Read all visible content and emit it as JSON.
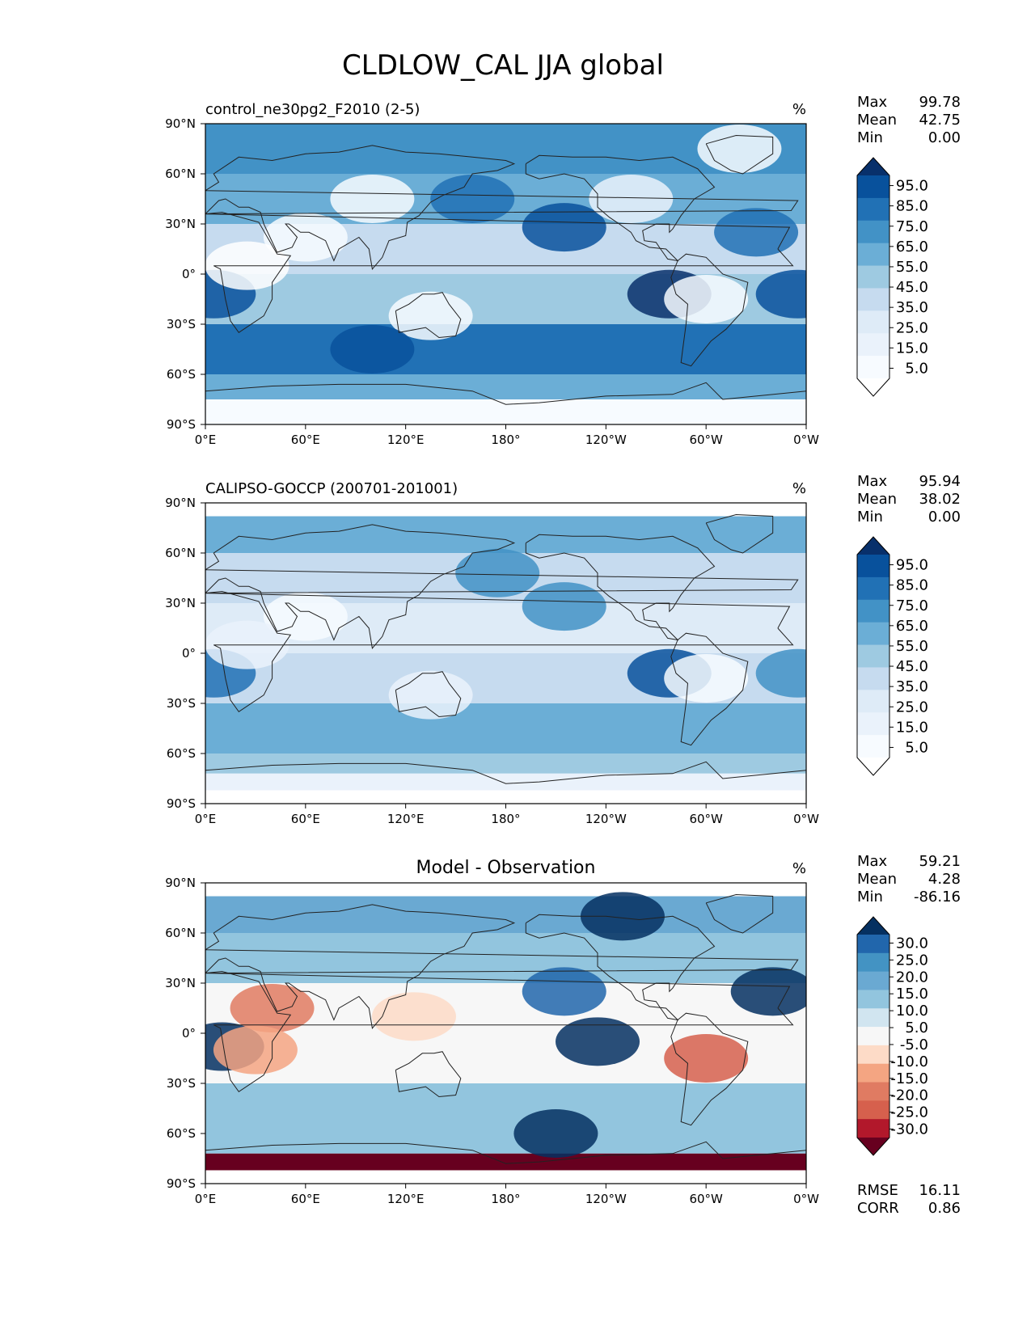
{
  "figure": {
    "title": "CLDLOW_CAL JJA global"
  },
  "chart_data": [
    {
      "type": "heatmap",
      "title": "control_ne30pg2_F2010 (2-5)",
      "units": "%",
      "stats": [
        {
          "label": "Max",
          "value": "99.78"
        },
        {
          "label": "Mean",
          "value": "42.75"
        },
        {
          "label": "Min",
          "value": "0.00"
        }
      ],
      "colorbar_ticks": [
        "95.0",
        "85.0",
        "75.0",
        "65.0",
        "55.0",
        "45.0",
        "35.0",
        "25.0",
        "15.0",
        "5.0"
      ],
      "colorbar_colors": [
        "#08306b",
        "#08519c",
        "#2171b5",
        "#4292c6",
        "#6baed6",
        "#9ecae1",
        "#c6dbef",
        "#deebf7",
        "#eaf2fb",
        "#f7fbff",
        "#ffffff"
      ],
      "x_ticks": [
        "0°E",
        "60°E",
        "120°E",
        "180°",
        "120°W",
        "60°W",
        "0°W"
      ],
      "y_ticks": [
        "90°N",
        "60°N",
        "30°N",
        "0°",
        "30°S",
        "60°S",
        "90°S"
      ],
      "xlim": [
        0,
        360
      ],
      "ylim": [
        -90,
        90
      ],
      "zones": [
        {
          "lat": [
            60,
            90
          ],
          "v": 72
        },
        {
          "lat": [
            30,
            60
          ],
          "v": 58
        },
        {
          "lat": [
            0,
            30
          ],
          "v": 35
        },
        {
          "lat": [
            -30,
            0
          ],
          "v": 48
        },
        {
          "lat": [
            -60,
            -30
          ],
          "v": 78
        },
        {
          "lat": [
            -75,
            -60
          ],
          "v": 62
        },
        {
          "lat": [
            -90,
            -75
          ],
          "v": 6
        }
      ],
      "blobs": [
        {
          "lon": 215,
          "lat": 28,
          "v": 92
        },
        {
          "lon": 278,
          "lat": -12,
          "v": 95
        },
        {
          "lon": 355,
          "lat": -12,
          "v": 90
        },
        {
          "lon": 5,
          "lat": -12,
          "v": 88
        },
        {
          "lon": 330,
          "lat": 25,
          "v": 80
        },
        {
          "lon": 60,
          "lat": 22,
          "v": 5
        },
        {
          "lon": 25,
          "lat": 5,
          "v": 4
        },
        {
          "lon": 100,
          "lat": 45,
          "v": 6
        },
        {
          "lon": 300,
          "lat": -15,
          "v": 8
        },
        {
          "lon": 135,
          "lat": -25,
          "v": 10
        },
        {
          "lon": 255,
          "lat": 45,
          "v": 15
        },
        {
          "lon": 320,
          "lat": 75,
          "v": 12
        },
        {
          "lon": 160,
          "lat": 45,
          "v": 80
        },
        {
          "lon": 100,
          "lat": -45,
          "v": 88
        }
      ]
    },
    {
      "type": "heatmap",
      "title": "CALIPSO-GOCCP (200701-201001)",
      "units": "%",
      "stats": [
        {
          "label": "Max",
          "value": "95.94"
        },
        {
          "label": "Mean",
          "value": "38.02"
        },
        {
          "label": "Min",
          "value": "0.00"
        }
      ],
      "colorbar_ticks": [
        "95.0",
        "85.0",
        "75.0",
        "65.0",
        "55.0",
        "45.0",
        "35.0",
        "25.0",
        "15.0",
        "5.0"
      ],
      "colorbar_colors": [
        "#08306b",
        "#08519c",
        "#2171b5",
        "#4292c6",
        "#6baed6",
        "#9ecae1",
        "#c6dbef",
        "#deebf7",
        "#eaf2fb",
        "#f7fbff",
        "#ffffff"
      ],
      "x_ticks": [
        "0°E",
        "60°E",
        "120°E",
        "180°",
        "120°W",
        "60°W",
        "0°W"
      ],
      "y_ticks": [
        "90°N",
        "60°N",
        "30°N",
        "0°",
        "30°S",
        "60°S",
        "90°S"
      ],
      "xlim": [
        0,
        360
      ],
      "ylim": [
        -90,
        90
      ],
      "zones": [
        {
          "lat": [
            60,
            82
          ],
          "v": 55
        },
        {
          "lat": [
            30,
            60
          ],
          "v": 40
        },
        {
          "lat": [
            0,
            30
          ],
          "v": 30
        },
        {
          "lat": [
            -30,
            0
          ],
          "v": 42
        },
        {
          "lat": [
            -60,
            -30
          ],
          "v": 62
        },
        {
          "lat": [
            -72,
            -60
          ],
          "v": 45
        },
        {
          "lat": [
            -82,
            -72
          ],
          "v": 20
        }
      ],
      "blobs": [
        {
          "lon": 215,
          "lat": 28,
          "v": 70
        },
        {
          "lon": 278,
          "lat": -12,
          "v": 85
        },
        {
          "lon": 355,
          "lat": -12,
          "v": 72
        },
        {
          "lon": 5,
          "lat": -12,
          "v": 78
        },
        {
          "lon": 60,
          "lat": 22,
          "v": 10
        },
        {
          "lon": 25,
          "lat": 5,
          "v": 15
        },
        {
          "lon": 300,
          "lat": -15,
          "v": 12
        },
        {
          "lon": 135,
          "lat": -25,
          "v": 18
        },
        {
          "lon": 175,
          "lat": 48,
          "v": 65
        }
      ]
    },
    {
      "type": "heatmap",
      "title": "Model - Observation",
      "units": "%",
      "stats": [
        {
          "label": "Max",
          "value": "59.21"
        },
        {
          "label": "Mean",
          "value": "4.28"
        },
        {
          "label": "Min",
          "value": "-86.16"
        }
      ],
      "colorbar_ticks": [
        "30.0",
        "25.0",
        "20.0",
        "15.0",
        "10.0",
        "5.0",
        "-5.0",
        "-10.0",
        "-15.0",
        "-20.0",
        "-25.0",
        "-30.0"
      ],
      "colorbar_colors": [
        "#053061",
        "#2166ac",
        "#4393c3",
        "#6aa9d2",
        "#92c5de",
        "#d1e5f0",
        "#f7f7f7",
        "#fddbc7",
        "#f4a582",
        "#e07b62",
        "#d6604d",
        "#b2182b",
        "#67001f"
      ],
      "x_ticks": [
        "0°E",
        "60°E",
        "120°E",
        "180°",
        "120°W",
        "60°W",
        "0°W"
      ],
      "y_ticks": [
        "90°N",
        "60°N",
        "30°N",
        "0°",
        "30°S",
        "60°S",
        "90°S"
      ],
      "xlim": [
        0,
        360
      ],
      "ylim": [
        -90,
        90
      ],
      "zones": [
        {
          "lat": [
            60,
            82
          ],
          "v": 18
        },
        {
          "lat": [
            30,
            60
          ],
          "v": 10
        },
        {
          "lat": [
            0,
            30
          ],
          "v": -4
        },
        {
          "lat": [
            -30,
            0
          ],
          "v": 4
        },
        {
          "lat": [
            -60,
            -30
          ],
          "v": 14
        },
        {
          "lat": [
            -72,
            -60
          ],
          "v": 10
        },
        {
          "lat": [
            -82,
            -72
          ],
          "v": -32
        }
      ],
      "stats2": [
        {
          "label": "RMSE",
          "value": "16.11"
        },
        {
          "label": "CORR",
          "value": "0.86"
        }
      ],
      "blobs": [
        {
          "lon": 215,
          "lat": 25,
          "v": 25
        },
        {
          "lon": 235,
          "lat": -5,
          "v": 32
        },
        {
          "lon": 340,
          "lat": 25,
          "v": 32
        },
        {
          "lon": 10,
          "lat": -8,
          "v": 32
        },
        {
          "lon": 40,
          "lat": 15,
          "v": -20
        },
        {
          "lon": 30,
          "lat": -10,
          "v": -15
        },
        {
          "lon": 300,
          "lat": -15,
          "v": -22
        },
        {
          "lon": 250,
          "lat": 70,
          "v": 32
        },
        {
          "lon": 125,
          "lat": 10,
          "v": -8
        },
        {
          "lon": 210,
          "lat": -60,
          "v": 30
        }
      ]
    }
  ]
}
